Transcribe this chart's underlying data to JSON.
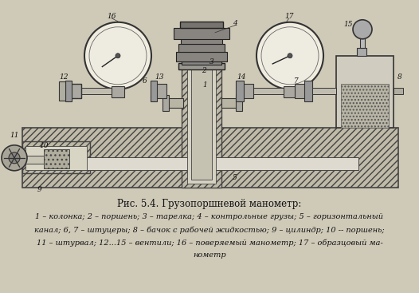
{
  "title": "Рис. 5.4. Грузопоршневой манометр:",
  "caption_lines": [
    "1 – колонка; 2 – поршень; 3 – тарелка; 4 – контрольные грузы; 5 – горизонтальный",
    "канал; 6, 7 – штуцеры; 8 – бачок с рабочей жидкостью; 9 – цилиндр; 10 -- поршень;",
    "11 – штурвал; 12...15 – вентили; 16 – поверяемый манометр; 17 – образцовый ма-",
    "нометр"
  ],
  "bg_color": "#cfc9b8",
  "fig_width": 5.26,
  "fig_height": 3.67,
  "dpi": 100
}
